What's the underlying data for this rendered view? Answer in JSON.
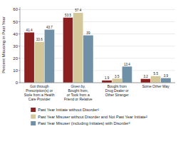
{
  "chart_data": {
    "type": "bar",
    "categories": [
      "Got through\nPrescription(s) or\nStole from a Health\nCare Provider",
      "Given by,\nBought from,\nor Took from a\nFriend or Relative",
      "Bought from\nDrug Dealer or\nOther Stranger",
      "Some Other Way"
    ],
    "series": [
      {
        "name": "Past Year Initiate without Disorder¹",
        "color": "#8b2020",
        "values": [
          41.4,
          53.5,
          1.9,
          3.2
        ]
      },
      {
        "name": "Past Year Misuser without Disorder and Not Past Year Initiate²",
        "color": "#d4c89a",
        "values": [
          33.6,
          57.4,
          3.5,
          5.5
        ]
      },
      {
        "name": "Past Year Misuser (including Initiates) with Disorder³",
        "color": "#7090a8",
        "values": [
          43.7,
          39.0,
          13.4,
          3.9
        ]
      }
    ],
    "ylabel": "Percent Misusing in Past Year",
    "ylim": [
      0,
      62
    ],
    "yticks": [
      0,
      10,
      20,
      30,
      40,
      50,
      60
    ],
    "grid": true,
    "data_labels": true,
    "legend": "bottom"
  }
}
